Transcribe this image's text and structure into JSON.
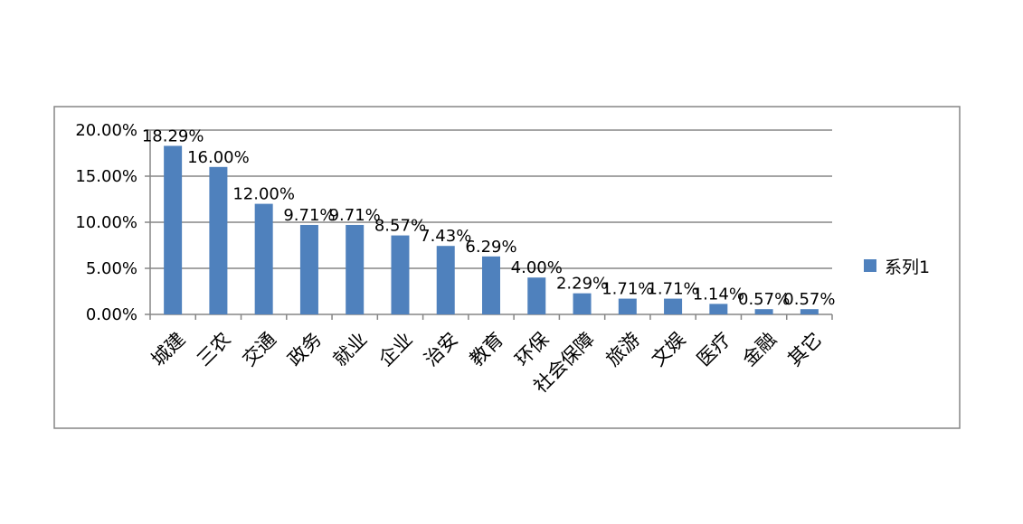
{
  "chart_data": {
    "type": "bar",
    "categories": [
      "城建",
      "三农",
      "交通",
      "政务",
      "就业",
      "企业",
      "治安",
      "教育",
      "环保",
      "社会保障",
      "旅游",
      "文娱",
      "医疗",
      "金融",
      "其它"
    ],
    "series": [
      {
        "name": "系列1",
        "values": [
          18.29,
          16.0,
          12.0,
          9.71,
          9.71,
          8.57,
          7.43,
          6.29,
          4.0,
          2.29,
          1.71,
          1.71,
          1.14,
          0.57,
          0.57
        ],
        "labels": [
          "18.29%",
          "16.00%",
          "12.00%",
          "9.71%",
          "9.71%",
          "8.57%",
          "7.43%",
          "6.29%",
          "4.00%",
          "2.29%",
          "1.71%",
          "1.71%",
          "1.14%",
          "0.57%",
          "0.57%"
        ],
        "color": "#4F81BD"
      }
    ],
    "y_ticks": [
      "0.00%",
      "5.00%",
      "10.00%",
      "15.00%",
      "20.00%"
    ],
    "ylim": [
      0,
      20
    ],
    "grid": true,
    "legend_position": "right",
    "frame_color": "#868686",
    "grid_color": "#868686"
  }
}
